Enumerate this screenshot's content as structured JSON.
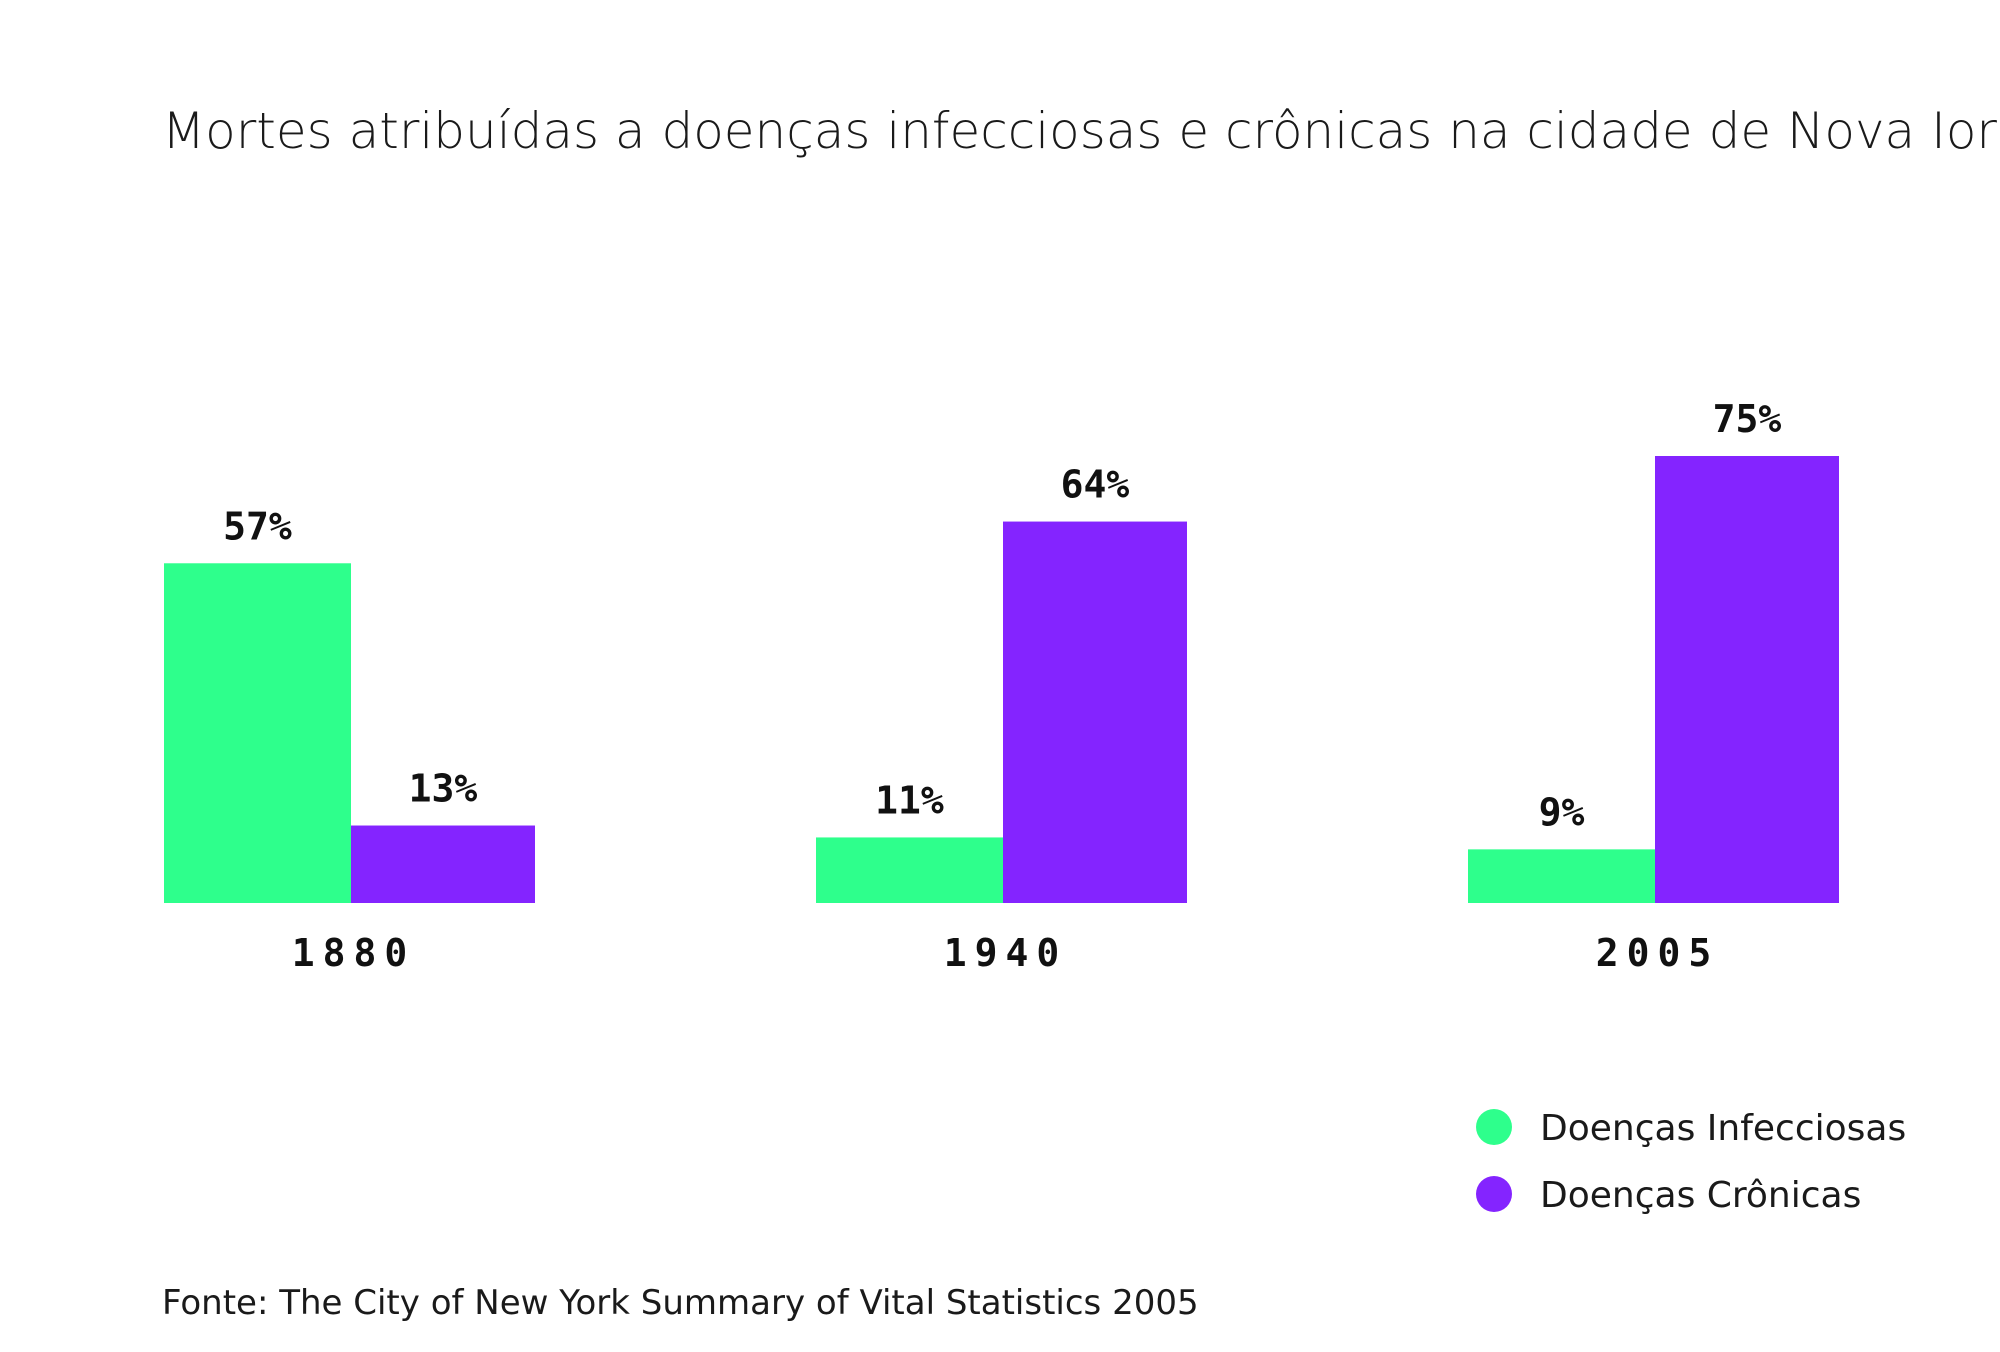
{
  "chart_data": {
    "type": "bar",
    "title": "Mortes atribuídas a doenças infecciosas e crônicas na cidade de Nova Iorque",
    "categories": [
      "1880",
      "1940",
      "2005"
    ],
    "series": [
      {
        "name": "Doenças Infecciosas",
        "color": "#2eff8c",
        "values": [
          57,
          11,
          9
        ],
        "labels": [
          "57%",
          "11%",
          "9%"
        ]
      },
      {
        "name": "Doenças Crônicas",
        "color": "#8424ff",
        "values": [
          13,
          64,
          75
        ],
        "labels": [
          "13%",
          "64%",
          "75%"
        ]
      }
    ],
    "unit": "%",
    "ylim": [
      0,
      75
    ],
    "grid": false,
    "legend": "bottom-right",
    "source": "Fonte: The City of New York Summary of Vital Statistics 2005"
  }
}
